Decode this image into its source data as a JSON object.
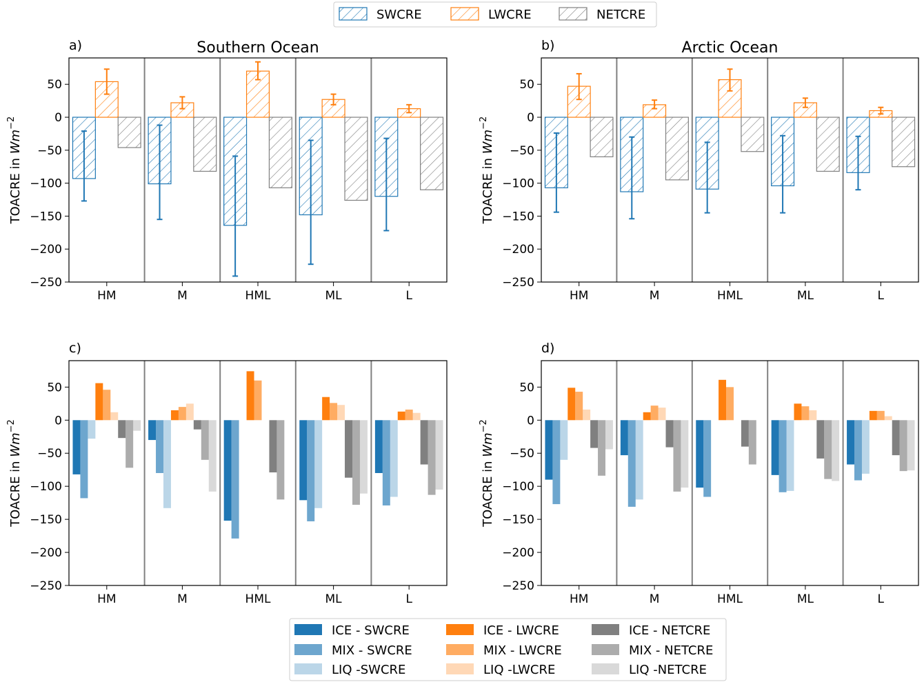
{
  "top_legend": [
    {
      "label": "SWCRE",
      "color": "#1f77b4"
    },
    {
      "label": "LWCRE",
      "color": "#ff7f0e"
    },
    {
      "label": "NETCRE",
      "color": "#808080"
    }
  ],
  "bottom_legend": [
    {
      "label": "ICE - SWCRE",
      "color": "#1f77b4",
      "alpha": 1.0
    },
    {
      "label": "MIX - SWCRE",
      "color": "#1f77b4",
      "alpha": 0.65
    },
    {
      "label": "LIQ -SWCRE",
      "color": "#1f77b4",
      "alpha": 0.3
    },
    {
      "label": "ICE - LWCRE",
      "color": "#ff7f0e",
      "alpha": 1.0
    },
    {
      "label": "MIX - LWCRE",
      "color": "#ff7f0e",
      "alpha": 0.65
    },
    {
      "label": "LIQ -LWCRE",
      "color": "#ff7f0e",
      "alpha": 0.3
    },
    {
      "label": "ICE - NETCRE",
      "color": "#808080",
      "alpha": 1.0
    },
    {
      "label": "MIX - NETCRE",
      "color": "#808080",
      "alpha": 0.65
    },
    {
      "label": "LIQ -NETCRE",
      "color": "#808080",
      "alpha": 0.3
    }
  ],
  "chart_data": [
    {
      "panel": "a)",
      "title": "Southern Ocean",
      "type": "bar",
      "ylabel": "TOACRE in Wm^-2",
      "ylim": [
        -250,
        90
      ],
      "yticks": [
        50,
        0,
        -50,
        -100,
        -150,
        -200,
        -250
      ],
      "categories": [
        "HM",
        "M",
        "HML",
        "ML",
        "L"
      ],
      "series": [
        {
          "name": "SWCRE",
          "values": [
            -93,
            -101,
            -164,
            -148,
            -120
          ],
          "err_low": [
            -127,
            -155,
            -241,
            -223,
            -172
          ],
          "err_high": [
            -21,
            -12,
            -59,
            -35,
            -32
          ]
        },
        {
          "name": "LWCRE",
          "values": [
            54,
            22,
            70,
            27,
            13
          ],
          "err_low": [
            35,
            13,
            57,
            19,
            7
          ],
          "err_high": [
            73,
            31,
            84,
            35,
            19
          ]
        },
        {
          "name": "NETCRE",
          "values": [
            -46,
            -82,
            -107,
            -126,
            -110
          ]
        }
      ]
    },
    {
      "panel": "b)",
      "title": "Arctic Ocean",
      "type": "bar",
      "ylabel": "TOACRE in Wm^-2",
      "ylim": [
        -250,
        90
      ],
      "yticks": [
        50,
        0,
        -50,
        -100,
        -150,
        -200,
        -250
      ],
      "categories": [
        "HM",
        "M",
        "HML",
        "ML",
        "L"
      ],
      "series": [
        {
          "name": "SWCRE",
          "values": [
            -107,
            -113,
            -109,
            -104,
            -84
          ],
          "err_low": [
            -144,
            -154,
            -145,
            -145,
            -110
          ],
          "err_high": [
            -24,
            -30,
            -38,
            -28,
            -29
          ]
        },
        {
          "name": "LWCRE",
          "values": [
            47,
            19,
            57,
            22,
            10
          ],
          "err_low": [
            27,
            13,
            40,
            15,
            5
          ],
          "err_high": [
            66,
            26,
            73,
            29,
            15
          ]
        },
        {
          "name": "NETCRE",
          "values": [
            -60,
            -95,
            -52,
            -82,
            -75
          ]
        }
      ]
    },
    {
      "panel": "c)",
      "title": "",
      "type": "bar",
      "ylabel": "TOACRE in Wm^-2",
      "ylim": [
        -250,
        90
      ],
      "yticks": [
        50,
        0,
        -50,
        -100,
        -150,
        -200,
        -250
      ],
      "categories": [
        "HM",
        "M",
        "HML",
        "ML",
        "L"
      ],
      "series": [
        {
          "name": "ICE - SWCRE",
          "values": [
            -82,
            -30,
            -152,
            -121,
            -80
          ]
        },
        {
          "name": "MIX - SWCRE",
          "values": [
            -118,
            -80,
            -179,
            -153,
            -129
          ]
        },
        {
          "name": "LIQ -SWCRE",
          "values": [
            -28,
            -133,
            null,
            -133,
            -116
          ]
        },
        {
          "name": "ICE - LWCRE",
          "values": [
            56,
            15,
            74,
            35,
            13
          ]
        },
        {
          "name": "MIX - LWCRE",
          "values": [
            46,
            20,
            60,
            26,
            16
          ]
        },
        {
          "name": "LIQ -LWCRE",
          "values": [
            12,
            25,
            null,
            23,
            11
          ]
        },
        {
          "name": "ICE - NETCRE",
          "values": [
            -27,
            -14,
            -79,
            -87,
            -67
          ]
        },
        {
          "name": "MIX - NETCRE",
          "values": [
            -72,
            -60,
            -120,
            -128,
            -113
          ]
        },
        {
          "name": "LIQ -NETCRE",
          "values": [
            -16,
            -108,
            null,
            -111,
            -105
          ]
        }
      ]
    },
    {
      "panel": "d)",
      "title": "",
      "type": "bar",
      "ylabel": "TOACRE in Wm^-2",
      "ylim": [
        -250,
        90
      ],
      "yticks": [
        50,
        0,
        -50,
        -100,
        -150,
        -200,
        -250
      ],
      "categories": [
        "HM",
        "M",
        "HML",
        "ML",
        "L"
      ],
      "series": [
        {
          "name": "ICE - SWCRE",
          "values": [
            -90,
            -53,
            -102,
            -83,
            -67
          ]
        },
        {
          "name": "MIX - SWCRE",
          "values": [
            -127,
            -131,
            -116,
            -109,
            -91
          ]
        },
        {
          "name": "LIQ -SWCRE",
          "values": [
            -60,
            -120,
            null,
            -107,
            -81
          ]
        },
        {
          "name": "ICE - LWCRE",
          "values": [
            49,
            12,
            61,
            25,
            14
          ]
        },
        {
          "name": "MIX - LWCRE",
          "values": [
            43,
            22,
            50,
            21,
            14
          ]
        },
        {
          "name": "LIQ -LWCRE",
          "values": [
            16,
            19,
            null,
            15,
            6
          ]
        },
        {
          "name": "ICE - NETCRE",
          "values": [
            -42,
            -41,
            -40,
            -58,
            -53
          ]
        },
        {
          "name": "MIX - NETCRE",
          "values": [
            -84,
            -108,
            -67,
            -89,
            -77
          ]
        },
        {
          "name": "LIQ -NETCRE",
          "values": [
            -44,
            -102,
            null,
            -92,
            -76
          ]
        }
      ]
    }
  ]
}
